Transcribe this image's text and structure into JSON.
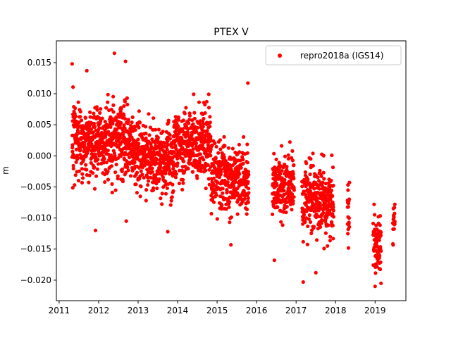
{
  "chart_data": {
    "type": "scatter",
    "title": "PTEX V",
    "xlabel": "",
    "ylabel": "m",
    "xlim": [
      2010.93,
      2019.78
    ],
    "ylim": [
      -0.0233,
      0.0185
    ],
    "xticks": [
      2011,
      2012,
      2013,
      2014,
      2015,
      2016,
      2017,
      2018,
      2019
    ],
    "xtick_labels": [
      "2011",
      "2012",
      "2013",
      "2014",
      "2015",
      "2016",
      "2017",
      "2018",
      "2019"
    ],
    "yticks": [
      -0.02,
      -0.015,
      -0.01,
      -0.005,
      0.0,
      0.005,
      0.01,
      0.015
    ],
    "ytick_labels": [
      "−0.020",
      "−0.015",
      "−0.010",
      "−0.005",
      "0.000",
      "0.005",
      "0.010",
      "0.015"
    ],
    "grid": false,
    "legend_position": "top-right",
    "series": [
      {
        "name": "repro2018a (IGS14)",
        "color": "#ff0000",
        "marker": "circle",
        "segments": [
          {
            "x_start": 2011.33,
            "x_end": 2012.0,
            "trend_start": 0.003,
            "trend_end": 0.002,
            "spread": 0.0045
          },
          {
            "x_start": 2012.0,
            "x_end": 2012.85,
            "trend_start": 0.002,
            "trend_end": 0.0025,
            "spread": 0.0045
          },
          {
            "x_start": 2012.85,
            "x_end": 2013.9,
            "trend_start": 0.0005,
            "trend_end": -0.001,
            "spread": 0.004
          },
          {
            "x_start": 2013.9,
            "x_end": 2014.85,
            "trend_start": 0.001,
            "trend_end": 0.0025,
            "spread": 0.0045
          },
          {
            "x_start": 2014.85,
            "x_end": 2015.8,
            "trend_start": -0.003,
            "trend_end": -0.004,
            "spread": 0.004
          },
          {
            "x_start": 2016.4,
            "x_end": 2016.95,
            "trend_start": -0.005,
            "trend_end": -0.005,
            "spread": 0.0042
          },
          {
            "x_start": 2017.15,
            "x_end": 2017.95,
            "trend_start": -0.007,
            "trend_end": -0.0075,
            "spread": 0.0042
          },
          {
            "x_start": 2018.3,
            "x_end": 2018.35,
            "trend_start": -0.008,
            "trend_end": -0.008,
            "spread": 0.0045
          },
          {
            "x_start": 2018.95,
            "x_end": 2019.15,
            "trend_start": -0.0135,
            "trend_end": -0.0135,
            "spread": 0.0035
          },
          {
            "x_start": 2019.45,
            "x_end": 2019.5,
            "trend_start": -0.011,
            "trend_end": -0.011,
            "spread": 0.002
          }
        ],
        "outliers": [
          {
            "x": 2011.33,
            "y": 0.0148
          },
          {
            "x": 2011.7,
            "y": 0.0137
          },
          {
            "x": 2011.92,
            "y": -0.012
          },
          {
            "x": 2012.4,
            "y": 0.0165
          },
          {
            "x": 2012.68,
            "y": 0.0152
          },
          {
            "x": 2012.7,
            "y": -0.0105
          },
          {
            "x": 2013.75,
            "y": -0.0122
          },
          {
            "x": 2015.78,
            "y": 0.0117
          },
          {
            "x": 2015.35,
            "y": -0.0143
          },
          {
            "x": 2016.45,
            "y": -0.0168
          },
          {
            "x": 2017.18,
            "y": -0.0203
          },
          {
            "x": 2017.5,
            "y": -0.0188
          },
          {
            "x": 2019.0,
            "y": -0.021
          },
          {
            "x": 2019.15,
            "y": -0.0205
          },
          {
            "x": 2019.5,
            "y": -0.0078
          }
        ]
      }
    ]
  }
}
